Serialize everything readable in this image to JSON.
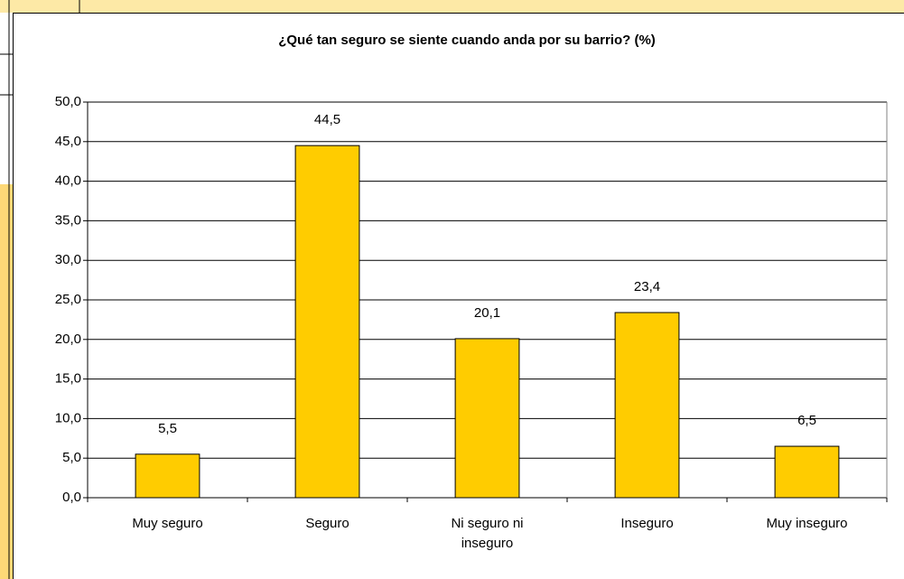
{
  "chart_data": {
    "type": "bar",
    "title": "¿Qué tan seguro se siente cuando anda por su barrio? (%)",
    "categories": [
      "Muy seguro",
      "Seguro",
      "Ni seguro ni inseguro",
      "Inseguro",
      "Muy inseguro"
    ],
    "values": [
      5.5,
      44.5,
      20.1,
      23.4,
      6.5
    ],
    "value_labels": [
      "5,5",
      "44,5",
      "20,1",
      "23,4",
      "6,5"
    ],
    "color": "#ffcc00",
    "ylim": [
      0,
      50
    ],
    "yticks": [
      {
        "value": 0,
        "label": "0,0"
      },
      {
        "value": 5,
        "label": "5,0"
      },
      {
        "value": 10,
        "label": "10,0"
      },
      {
        "value": 15,
        "label": "15,0"
      },
      {
        "value": 20,
        "label": "20,0"
      },
      {
        "value": 25,
        "label": "25,0"
      },
      {
        "value": 30,
        "label": "30,0"
      },
      {
        "value": 35,
        "label": "35,0"
      },
      {
        "value": 40,
        "label": "40,0"
      },
      {
        "value": 45,
        "label": "45,0"
      },
      {
        "value": 50,
        "label": "50,0"
      }
    ],
    "grid": true
  }
}
